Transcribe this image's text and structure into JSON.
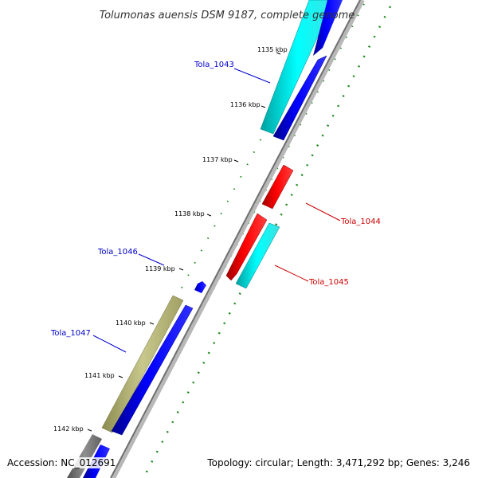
{
  "title": "Tolumonas auensis DSM 9187, complete genome",
  "footer": {
    "accession": "Accession: NC_012691",
    "summary": "Topology: circular; Length: 3,471,292 bp; Genes: 3,246"
  },
  "ticks": [
    "1135 kbp",
    "1136 kbp",
    "1137 kbp",
    "1138 kbp",
    "1139 kbp",
    "1140 kbp",
    "1141 kbp",
    "1142 kbp"
  ],
  "genes": [
    {
      "name": "Tola_1043",
      "color": "#0000ff"
    },
    {
      "name": "Tola_1044",
      "color": "#ff0000"
    },
    {
      "name": "Tola_1045",
      "color": "#ff0000"
    },
    {
      "name": "Tola_1046",
      "color": "#0000ff"
    },
    {
      "name": "Tola_1047",
      "color": "#0000ff"
    }
  ],
  "colors": {
    "forward_cds": "#0000ff",
    "reverse_cds": "#ff0000",
    "cyan_feature": "#00c8c8",
    "olive_feature": "#b4b464",
    "backbone": "#888888",
    "gc_ticks": "#228b22"
  }
}
